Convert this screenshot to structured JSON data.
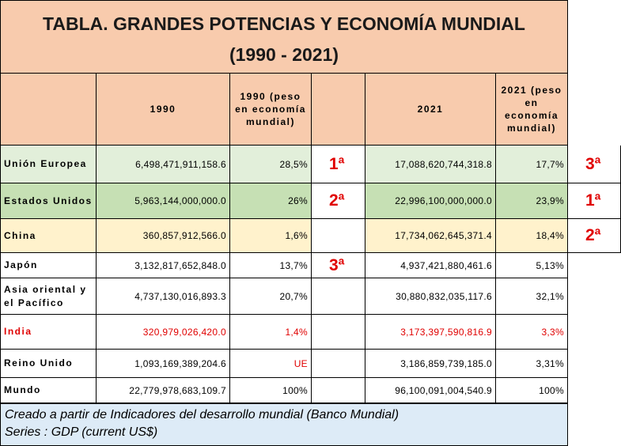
{
  "header": {
    "title_line1": "TABLA. GRANDES POTENCIAS Y ECONOMÍA MUNDIAL",
    "title_line2": "(1990 - 2021)"
  },
  "table": {
    "headers": {
      "y1990": "1990",
      "peso1990": "1990 (peso en economía mundial)",
      "y2021": "2021",
      "peso2021": "2021 (peso en economía mundial)"
    },
    "rows": [
      {
        "name": "Unión Europea",
        "gdp1990": "6,498,471,911,158.6",
        "peso1990": "28,5%",
        "rank1990": "1ª",
        "gdp2021": "17,088,620,744,318.8",
        "peso2021": "17,7%",
        "rank2021": "3ª"
      },
      {
        "name": "Estados Unidos",
        "gdp1990": "5,963,144,000,000.0",
        "peso1990": "26%",
        "rank1990": "2ª",
        "gdp2021": "22,996,100,000,000.0",
        "peso2021": "23,9%",
        "rank2021": "1ª"
      },
      {
        "name": "China",
        "gdp1990": "360,857,912,566.0",
        "peso1990": "1,6%",
        "gdp2021": "17,734,062,645,371.4",
        "peso2021": "18,4%",
        "rank2021": "2ª"
      },
      {
        "name": "Japón",
        "gdp1990": "3,132,817,652,848.0",
        "peso1990": "13,7%",
        "rank1990": "3ª",
        "gdp2021": "4,937,421,880,461.6",
        "peso2021": "5,13%"
      },
      {
        "name": "Asia oriental y el Pacífico",
        "gdp1990": "4,737,130,016,893.3",
        "peso1990": "20,7%",
        "gdp2021": "30,880,832,035,117.6",
        "peso2021": "32,1%"
      },
      {
        "name": "India",
        "gdp1990": "320,979,026,420.0",
        "peso1990": "1,4%",
        "gdp2021": "3,173,397,590,816.9",
        "peso2021": "3,3%"
      },
      {
        "name": "Reino Unido",
        "gdp1990": "1,093,169,389,204.6",
        "peso1990": "UE",
        "gdp2021": "3,186,859,739,185.0",
        "peso2021": "3,31%"
      },
      {
        "name": "Mundo",
        "gdp1990": "22,779,978,683,109.7",
        "peso1990": "100%",
        "gdp2021": "96,100,091,004,540.9",
        "peso2021": "100%"
      }
    ]
  },
  "footer": {
    "line1": "Creado a partir de Indicadores del desarrollo mundial (Banco Mundial)",
    "line2": "Series : GDP (current US$)"
  }
}
